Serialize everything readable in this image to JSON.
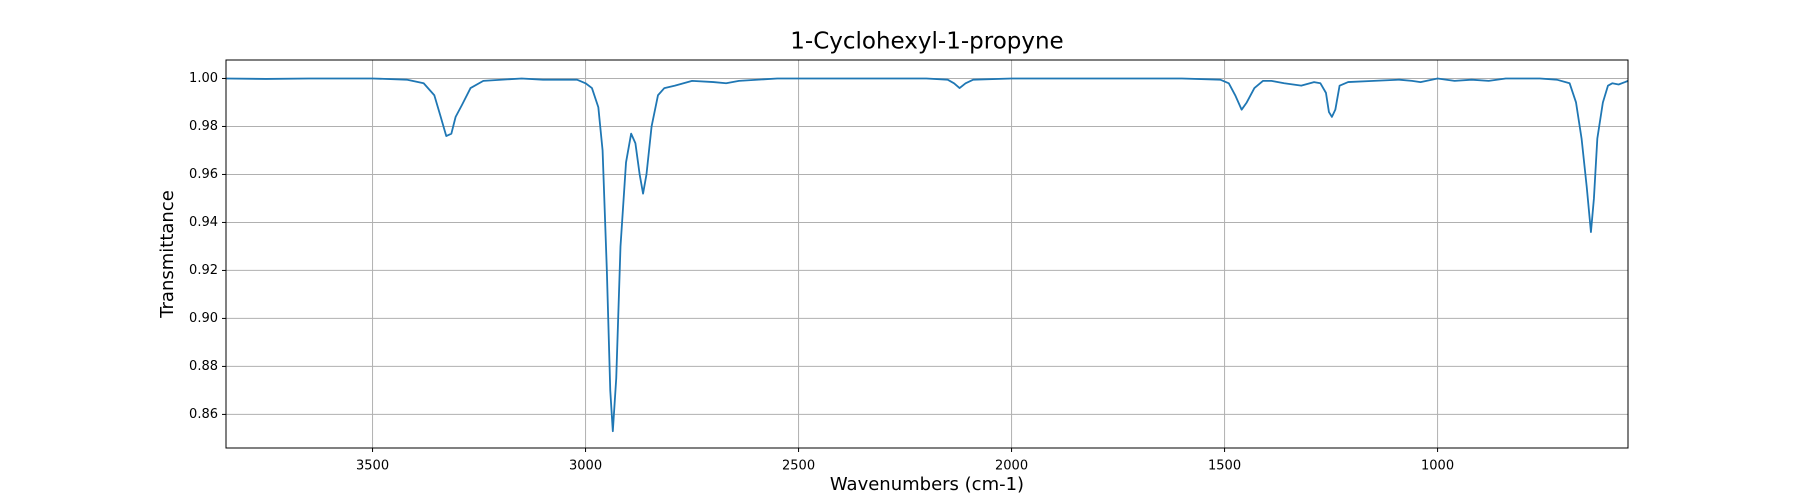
{
  "chart_data": {
    "type": "line",
    "title": "1-Cyclohexyl-1-propyne",
    "x_label": "Wavenumbers (cm-1)",
    "y_label": "Transmittance",
    "color": "#1f77b4",
    "grid": true,
    "xlim": [
      3844,
      553
    ],
    "ylim": [
      0.846,
      1.0077
    ],
    "xticks": [
      3500,
      3000,
      2500,
      2000,
      1500,
      1000
    ],
    "yticks": [
      0.86,
      0.88,
      {
        "value": 0.9,
        "label": "0.90"
      },
      0.92,
      0.94,
      0.96,
      0.98,
      {
        "value": 1,
        "label": "1.00"
      }
    ],
    "x": [
      3844,
      3750,
      3650,
      3500,
      3420,
      3380,
      3355,
      3340,
      3327,
      3315,
      3305,
      3290,
      3270,
      3240,
      3150,
      3100,
      3020,
      3000,
      2985,
      2970,
      2960,
      2950,
      2942,
      2936,
      2928,
      2918,
      2905,
      2893,
      2883,
      2873,
      2865,
      2857,
      2845,
      2830,
      2815,
      2790,
      2750,
      2700,
      2670,
      2640,
      2550,
      2400,
      2200,
      2150,
      2135,
      2122,
      2108,
      2090,
      2000,
      1800,
      1600,
      1510,
      1490,
      1475,
      1460,
      1448,
      1430,
      1410,
      1390,
      1360,
      1320,
      1290,
      1275,
      1262,
      1255,
      1248,
      1240,
      1230,
      1210,
      1150,
      1090,
      1060,
      1040,
      1000,
      960,
      920,
      880,
      840,
      760,
      720,
      690,
      675,
      662,
      650,
      640,
      633,
      625,
      612,
      600,
      590,
      575,
      560,
      553
    ],
    "values": [
      1.0,
      0.9998,
      1.0,
      1.0,
      0.9995,
      0.998,
      0.993,
      0.984,
      0.976,
      0.977,
      0.984,
      0.989,
      0.996,
      0.999,
      1.0,
      0.9995,
      0.9995,
      0.998,
      0.996,
      0.988,
      0.97,
      0.92,
      0.87,
      0.853,
      0.875,
      0.93,
      0.965,
      0.977,
      0.973,
      0.96,
      0.952,
      0.96,
      0.98,
      0.993,
      0.996,
      0.997,
      0.999,
      0.9985,
      0.998,
      0.999,
      1.0,
      1.0,
      1.0,
      0.9995,
      0.998,
      0.996,
      0.998,
      0.9995,
      1.0,
      1.0,
      1.0,
      0.9995,
      0.998,
      0.993,
      0.987,
      0.99,
      0.996,
      0.999,
      0.999,
      0.998,
      0.997,
      0.9985,
      0.998,
      0.994,
      0.986,
      0.984,
      0.987,
      0.997,
      0.9985,
      0.999,
      0.9995,
      0.999,
      0.9985,
      1.0,
      0.999,
      0.9995,
      0.999,
      1.0,
      1.0,
      0.9995,
      0.998,
      0.99,
      0.975,
      0.955,
      0.936,
      0.95,
      0.975,
      0.99,
      0.997,
      0.998,
      0.9975,
      0.9985,
      0.999
    ]
  }
}
